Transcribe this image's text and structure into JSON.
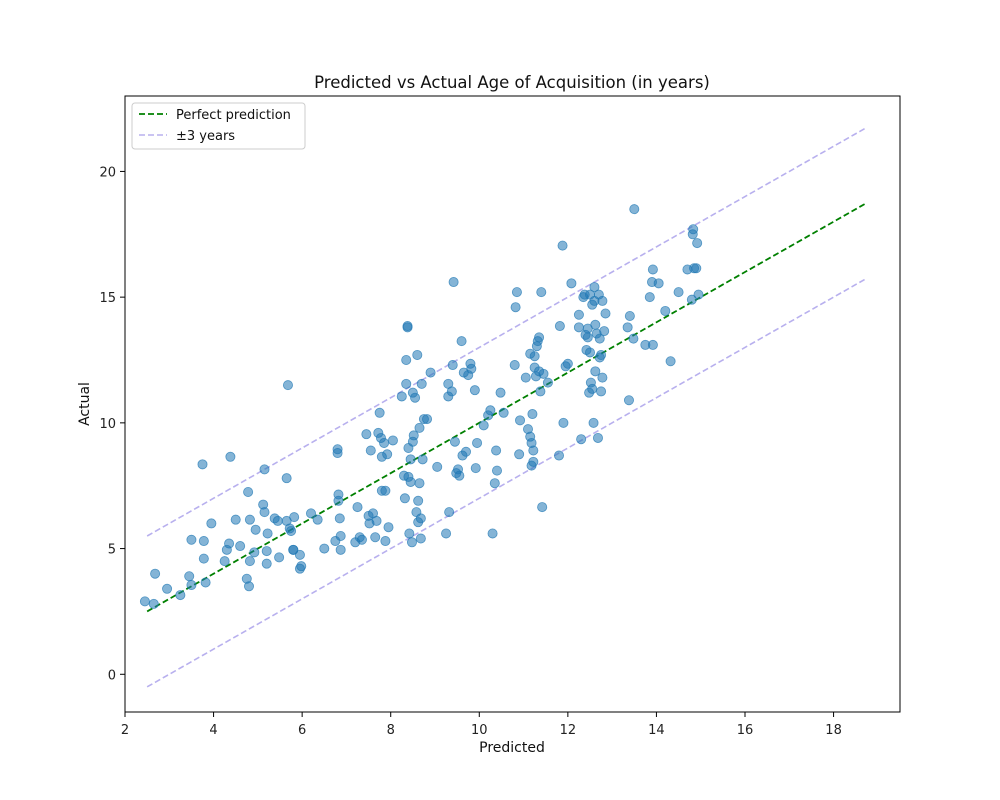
{
  "chart_data": {
    "type": "scatter",
    "title": "Predicted vs Actual Age of Acquisition (in years)",
    "xlabel": "Predicted",
    "ylabel": "Actual",
    "xlim": [
      2.0,
      19.5
    ],
    "ylim": [
      -1.5,
      23.0
    ],
    "xticks": [
      2,
      4,
      6,
      8,
      10,
      12,
      14,
      16,
      18
    ],
    "xtick_labels": [
      "2",
      "4",
      "6",
      "8",
      "10",
      "12",
      "14",
      "16",
      "18"
    ],
    "yticks": [
      0,
      5,
      10,
      15,
      20
    ],
    "ytick_labels": [
      "0",
      "5",
      "10",
      "15",
      "20"
    ],
    "grid": false,
    "legend_position": "top-left",
    "reference_lines": [
      {
        "name": "Perfect prediction",
        "x": [
          2.5,
          18.7
        ],
        "y": [
          2.5,
          18.7
        ],
        "color": "#008000",
        "style": "dashed"
      },
      {
        "name": "±3 years",
        "x": [
          2.5,
          18.7
        ],
        "y": [
          5.5,
          21.7
        ],
        "color": "#b8b0ee",
        "style": "dashed"
      },
      {
        "name": "±3 years (lower)",
        "x": [
          2.5,
          18.7
        ],
        "y": [
          -0.5,
          15.7
        ],
        "color": "#b8b0ee",
        "style": "dashed",
        "legend": false
      }
    ],
    "legend": [
      {
        "label": "Perfect prediction",
        "color": "#008000",
        "style": "dashed"
      },
      {
        "label": "±3 years",
        "color": "#b8b0ee",
        "style": "dashed"
      }
    ],
    "point_color": "#1f77b4",
    "points": [
      [
        2.45,
        2.9
      ],
      [
        2.65,
        2.8
      ],
      [
        2.68,
        4.0
      ],
      [
        2.95,
        3.4
      ],
      [
        3.25,
        3.15
      ],
      [
        3.45,
        3.9
      ],
      [
        3.5,
        3.55
      ],
      [
        3.5,
        5.35
      ],
      [
        3.75,
        8.35
      ],
      [
        3.78,
        5.3
      ],
      [
        3.78,
        4.6
      ],
      [
        3.82,
        3.65
      ],
      [
        3.95,
        6.0
      ],
      [
        4.25,
        4.5
      ],
      [
        4.3,
        4.95
      ],
      [
        4.35,
        5.2
      ],
      [
        4.38,
        8.65
      ],
      [
        4.5,
        6.15
      ],
      [
        4.6,
        5.1
      ],
      [
        4.75,
        3.8
      ],
      [
        4.78,
        7.25
      ],
      [
        4.8,
        3.5
      ],
      [
        4.82,
        6.15
      ],
      [
        4.82,
        4.5
      ],
      [
        4.92,
        4.85
      ],
      [
        4.95,
        5.75
      ],
      [
        5.12,
        6.75
      ],
      [
        5.15,
        8.15
      ],
      [
        5.15,
        6.45
      ],
      [
        5.2,
        4.9
      ],
      [
        5.2,
        4.4
      ],
      [
        5.22,
        5.6
      ],
      [
        5.38,
        6.2
      ],
      [
        5.45,
        6.1
      ],
      [
        5.48,
        4.65
      ],
      [
        5.65,
        7.8
      ],
      [
        5.65,
        6.1
      ],
      [
        5.68,
        11.5
      ],
      [
        5.72,
        5.8
      ],
      [
        5.75,
        5.7
      ],
      [
        5.8,
        4.95
      ],
      [
        5.82,
        6.25
      ],
      [
        5.8,
        4.95
      ],
      [
        5.95,
        4.75
      ],
      [
        5.95,
        4.2
      ],
      [
        5.98,
        4.3
      ],
      [
        6.2,
        6.4
      ],
      [
        6.35,
        6.15
      ],
      [
        6.5,
        5.0
      ],
      [
        6.75,
        5.3
      ],
      [
        6.8,
        8.8
      ],
      [
        6.8,
        8.95
      ],
      [
        6.82,
        7.15
      ],
      [
        6.82,
        6.9
      ],
      [
        6.85,
        6.2
      ],
      [
        6.87,
        5.5
      ],
      [
        6.87,
        4.95
      ],
      [
        7.2,
        5.25
      ],
      [
        7.25,
        6.65
      ],
      [
        7.3,
        5.45
      ],
      [
        7.35,
        5.35
      ],
      [
        7.45,
        9.55
      ],
      [
        7.5,
        6.3
      ],
      [
        7.52,
        6.0
      ],
      [
        7.55,
        8.9
      ],
      [
        7.6,
        6.4
      ],
      [
        7.65,
        5.45
      ],
      [
        7.68,
        6.1
      ],
      [
        7.72,
        9.6
      ],
      [
        7.75,
        10.4
      ],
      [
        7.78,
        9.4
      ],
      [
        7.8,
        8.65
      ],
      [
        7.8,
        7.3
      ],
      [
        7.85,
        9.2
      ],
      [
        7.88,
        7.3
      ],
      [
        7.88,
        5.3
      ],
      [
        7.92,
        8.75
      ],
      [
        7.95,
        5.85
      ],
      [
        8.05,
        9.3
      ],
      [
        8.25,
        11.05
      ],
      [
        8.3,
        7.9
      ],
      [
        8.32,
        7.0
      ],
      [
        8.35,
        11.55
      ],
      [
        8.35,
        12.5
      ],
      [
        8.38,
        13.8
      ],
      [
        8.38,
        13.85
      ],
      [
        8.4,
        9.0
      ],
      [
        8.4,
        7.85
      ],
      [
        8.42,
        5.6
      ],
      [
        8.45,
        8.55
      ],
      [
        8.45,
        7.65
      ],
      [
        8.48,
        5.25
      ],
      [
        8.5,
        9.25
      ],
      [
        8.5,
        11.2
      ],
      [
        8.52,
        9.5
      ],
      [
        8.55,
        11.0
      ],
      [
        8.58,
        6.45
      ],
      [
        8.6,
        12.7
      ],
      [
        8.62,
        6.05
      ],
      [
        8.62,
        6.9
      ],
      [
        8.65,
        9.8
      ],
      [
        8.65,
        7.6
      ],
      [
        8.68,
        5.4
      ],
      [
        8.68,
        6.2
      ],
      [
        8.7,
        11.55
      ],
      [
        8.72,
        8.55
      ],
      [
        8.75,
        10.15
      ],
      [
        8.82,
        10.15
      ],
      [
        8.9,
        12.0
      ],
      [
        9.05,
        8.25
      ],
      [
        9.25,
        5.6
      ],
      [
        9.3,
        11.55
      ],
      [
        9.3,
        11.05
      ],
      [
        9.32,
        6.45
      ],
      [
        9.38,
        11.25
      ],
      [
        9.4,
        12.3
      ],
      [
        9.42,
        15.6
      ],
      [
        9.45,
        9.25
      ],
      [
        9.48,
        8.0
      ],
      [
        9.52,
        8.15
      ],
      [
        9.55,
        7.9
      ],
      [
        9.6,
        13.25
      ],
      [
        9.62,
        8.7
      ],
      [
        9.65,
        12.0
      ],
      [
        9.7,
        8.85
      ],
      [
        9.75,
        11.9
      ],
      [
        9.8,
        12.35
      ],
      [
        9.82,
        12.15
      ],
      [
        9.9,
        11.3
      ],
      [
        9.92,
        8.2
      ],
      [
        9.95,
        9.2
      ],
      [
        10.1,
        9.9
      ],
      [
        10.2,
        10.3
      ],
      [
        10.25,
        10.5
      ],
      [
        10.3,
        5.6
      ],
      [
        10.35,
        7.6
      ],
      [
        10.38,
        8.9
      ],
      [
        10.4,
        8.1
      ],
      [
        10.48,
        11.2
      ],
      [
        10.55,
        10.4
      ],
      [
        10.8,
        12.3
      ],
      [
        10.82,
        14.6
      ],
      [
        10.85,
        15.2
      ],
      [
        10.9,
        8.75
      ],
      [
        10.92,
        10.1
      ],
      [
        11.05,
        11.8
      ],
      [
        11.1,
        9.75
      ],
      [
        11.15,
        12.75
      ],
      [
        11.15,
        9.45
      ],
      [
        11.18,
        9.2
      ],
      [
        11.18,
        8.3
      ],
      [
        11.2,
        10.35
      ],
      [
        11.22,
        8.45
      ],
      [
        11.22,
        8.9
      ],
      [
        11.25,
        12.2
      ],
      [
        11.25,
        12.65
      ],
      [
        11.28,
        11.85
      ],
      [
        11.3,
        13.05
      ],
      [
        11.32,
        13.25
      ],
      [
        11.35,
        12.05
      ],
      [
        11.35,
        13.4
      ],
      [
        11.38,
        11.25
      ],
      [
        11.4,
        15.2
      ],
      [
        11.42,
        6.65
      ],
      [
        11.45,
        11.95
      ],
      [
        11.55,
        11.6
      ],
      [
        11.8,
        8.7
      ],
      [
        11.82,
        13.85
      ],
      [
        11.88,
        17.05
      ],
      [
        11.9,
        10.0
      ],
      [
        11.95,
        12.25
      ],
      [
        12.0,
        12.35
      ],
      [
        12.08,
        15.55
      ],
      [
        12.25,
        14.3
      ],
      [
        12.25,
        13.8
      ],
      [
        12.3,
        9.35
      ],
      [
        12.35,
        15.0
      ],
      [
        12.38,
        15.1
      ],
      [
        12.4,
        13.5
      ],
      [
        12.42,
        12.9
      ],
      [
        12.45,
        13.4
      ],
      [
        12.45,
        13.75
      ],
      [
        12.48,
        11.2
      ],
      [
        12.5,
        15.1
      ],
      [
        12.5,
        12.8
      ],
      [
        12.52,
        11.6
      ],
      [
        12.55,
        14.7
      ],
      [
        12.55,
        11.35
      ],
      [
        12.58,
        10.0
      ],
      [
        12.6,
        14.85
      ],
      [
        12.6,
        15.4
      ],
      [
        12.62,
        12.05
      ],
      [
        12.62,
        13.9
      ],
      [
        12.65,
        13.55
      ],
      [
        12.68,
        9.4
      ],
      [
        12.7,
        15.1
      ],
      [
        12.72,
        13.35
      ],
      [
        12.72,
        12.6
      ],
      [
        12.75,
        12.7
      ],
      [
        12.75,
        11.25
      ],
      [
        12.78,
        14.85
      ],
      [
        12.78,
        11.8
      ],
      [
        12.82,
        13.65
      ],
      [
        12.85,
        14.35
      ],
      [
        13.35,
        13.8
      ],
      [
        13.38,
        10.9
      ],
      [
        13.4,
        14.25
      ],
      [
        13.48,
        13.35
      ],
      [
        13.5,
        18.5
      ],
      [
        13.75,
        13.1
      ],
      [
        13.85,
        15.0
      ],
      [
        13.9,
        15.6
      ],
      [
        13.92,
        13.1
      ],
      [
        13.92,
        16.1
      ],
      [
        14.05,
        15.55
      ],
      [
        14.2,
        14.45
      ],
      [
        14.32,
        12.45
      ],
      [
        14.5,
        15.2
      ],
      [
        14.7,
        16.1
      ],
      [
        14.8,
        14.9
      ],
      [
        14.82,
        17.5
      ],
      [
        14.83,
        17.7
      ],
      [
        14.85,
        16.15
      ],
      [
        14.9,
        16.15
      ],
      [
        14.92,
        17.15
      ],
      [
        14.95,
        15.1
      ]
    ]
  }
}
